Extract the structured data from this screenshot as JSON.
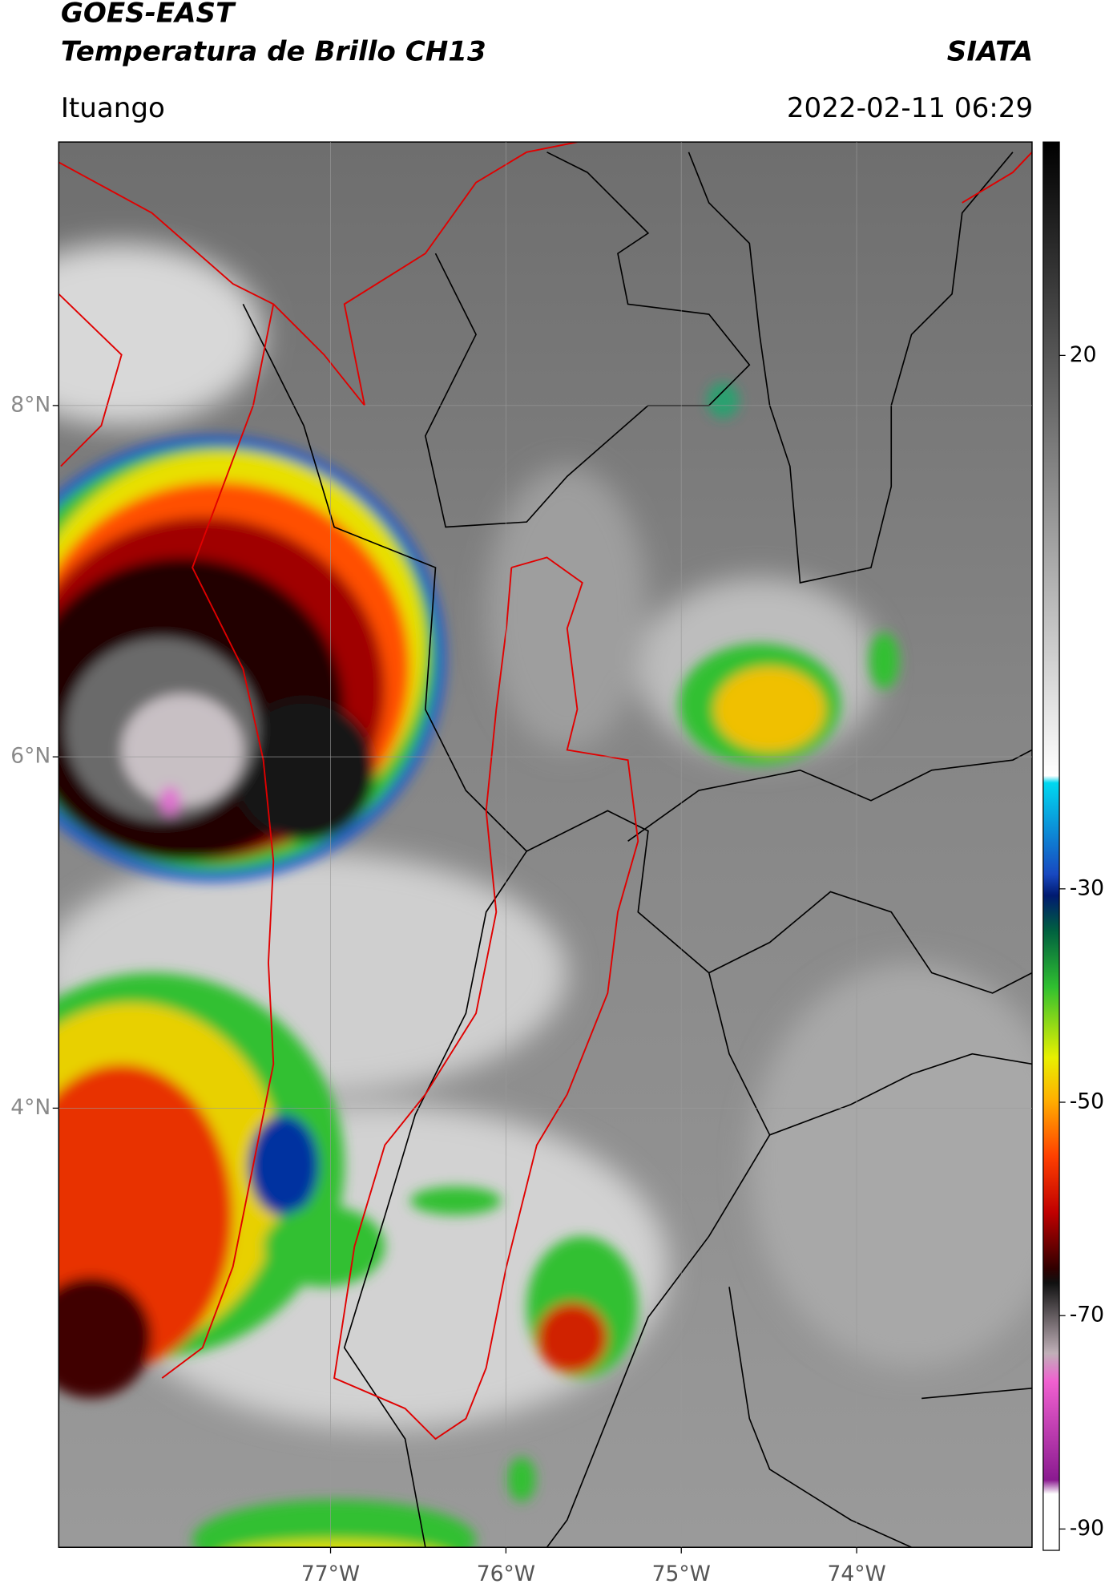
{
  "header": {
    "satellite": "GOES-EAST",
    "product": "Temperatura de Brillo CH13",
    "agency": "SIATA",
    "region": "Ituango",
    "datetime": "2022-02-11 06:29"
  },
  "map": {
    "xlim": [
      -78.55,
      -73.0
    ],
    "ylim": [
      1.5,
      9.5
    ],
    "xticks": [
      {
        "value": -77,
        "label": "77°W"
      },
      {
        "value": -76,
        "label": "76°W"
      },
      {
        "value": -75,
        "label": "75°W"
      },
      {
        "value": -74,
        "label": "74°W"
      }
    ],
    "yticks": [
      {
        "value": 8,
        "label": "8°N"
      },
      {
        "value": 6,
        "label": "6°N"
      },
      {
        "value": 4,
        "label": "4°N"
      }
    ],
    "grid": true
  },
  "colorbar": {
    "lim": [
      -92,
      40
    ],
    "ticks": [
      20,
      -30,
      -50,
      -70,
      -90
    ]
  }
}
